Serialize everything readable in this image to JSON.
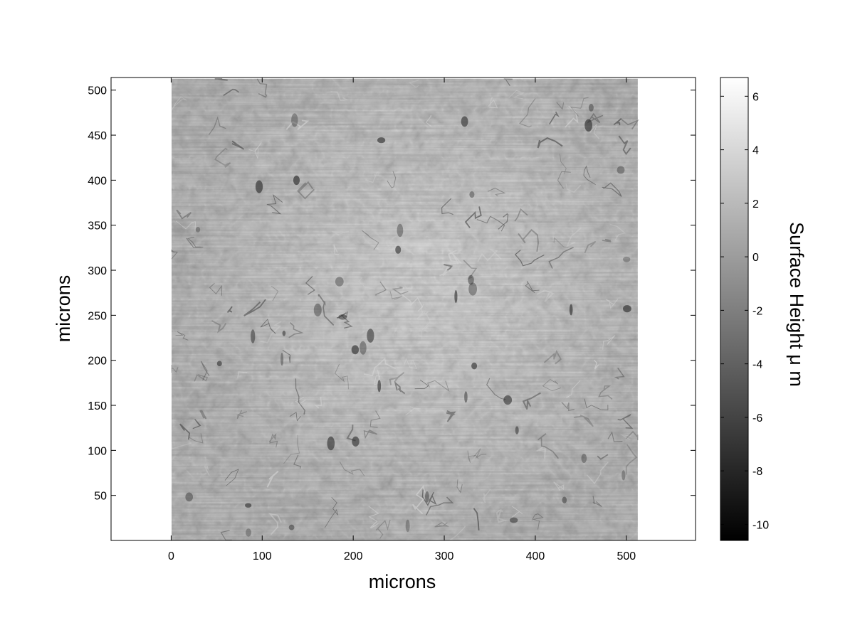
{
  "chart_data": {
    "type": "heatmap",
    "title": "",
    "xlabel": "microns",
    "ylabel": "microns",
    "xlim": [
      -66,
      576
    ],
    "ylim": [
      0,
      514
    ],
    "image_extent": {
      "x": [
        1,
        512
      ],
      "y": [
        1,
        512
      ]
    },
    "xticks": [
      0,
      100,
      200,
      300,
      400,
      500
    ],
    "xtick_labels": [
      "0",
      "100",
      "200",
      "300",
      "400",
      "500"
    ],
    "yticks": [
      50,
      100,
      150,
      200,
      250,
      300,
      350,
      400,
      450,
      500
    ],
    "ytick_labels": [
      "50",
      "100",
      "150",
      "200",
      "250",
      "300",
      "350",
      "400",
      "450",
      "500"
    ],
    "colormap": "gray",
    "colorbar": {
      "label": "Surface Height μ m",
      "range": [
        -10.6,
        6.7
      ],
      "ticks": [
        -10,
        -8,
        -6,
        -4,
        -2,
        0,
        2,
        4,
        6
      ],
      "tick_labels": [
        "-10",
        "-8",
        "-6",
        "-4",
        "-2",
        "0",
        "2",
        "4",
        "6"
      ]
    },
    "grid": false,
    "description_of_surface": ""
  },
  "colors": {
    "axes": "#000000",
    "background": "#ffffff",
    "surface_mid": "#8a8a8a",
    "surface_light": "#b8b8b8",
    "surface_dark": "#3c3c3c"
  }
}
